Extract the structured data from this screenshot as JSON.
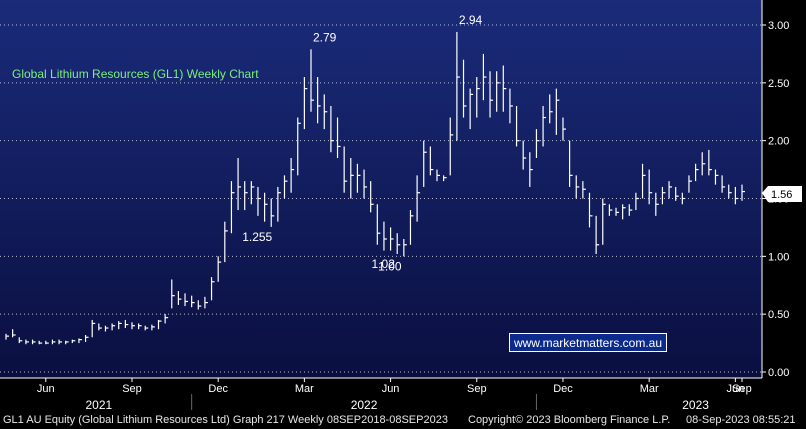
{
  "chart_data": {
    "type": "ohlc",
    "title": "Global Lithium Resources (GL1) Weekly Chart",
    "colors": {
      "background": "#000000",
      "plot_top": "#1a2b7a",
      "plot_bottom": "#0a0f40",
      "bars": "#ffffff",
      "grid": "#ffffff",
      "title": "#7cf07c",
      "last_price_box": "#ffffff"
    },
    "ylim": [
      0,
      3.1
    ],
    "y_ticks": [
      "0.00",
      "0.50",
      "1.00",
      "1.50",
      "2.00",
      "2.50",
      "3.00"
    ],
    "x_ticks": [
      "Jun",
      "Sep",
      "Dec",
      "Mar",
      "Jun",
      "Sep",
      "Dec",
      "Mar",
      "Jun",
      "Sep"
    ],
    "years": [
      "2021",
      "2022",
      "2023"
    ],
    "grid": "dotted horizontal",
    "last_price": "1.56",
    "annotations": [
      "2.79",
      "2.94",
      "1.255",
      "1.00",
      "1.02"
    ],
    "weekly_bars": [
      {
        "h": 0.33,
        "l": 0.28,
        "c": 0.31
      },
      {
        "h": 0.37,
        "l": 0.3,
        "c": 0.32
      },
      {
        "h": 0.3,
        "l": 0.25,
        "c": 0.27
      },
      {
        "h": 0.28,
        "l": 0.24,
        "c": 0.26
      },
      {
        "h": 0.28,
        "l": 0.24,
        "c": 0.26
      },
      {
        "h": 0.27,
        "l": 0.24,
        "c": 0.25
      },
      {
        "h": 0.27,
        "l": 0.24,
        "c": 0.25
      },
      {
        "h": 0.28,
        "l": 0.24,
        "c": 0.26
      },
      {
        "h": 0.28,
        "l": 0.24,
        "c": 0.26
      },
      {
        "h": 0.27,
        "l": 0.24,
        "c": 0.26
      },
      {
        "h": 0.28,
        "l": 0.25,
        "c": 0.27
      },
      {
        "h": 0.29,
        "l": 0.25,
        "c": 0.28
      },
      {
        "h": 0.32,
        "l": 0.26,
        "c": 0.3
      },
      {
        "h": 0.45,
        "l": 0.3,
        "c": 0.42
      },
      {
        "h": 0.42,
        "l": 0.36,
        "c": 0.38
      },
      {
        "h": 0.4,
        "l": 0.35,
        "c": 0.38
      },
      {
        "h": 0.42,
        "l": 0.36,
        "c": 0.4
      },
      {
        "h": 0.44,
        "l": 0.37,
        "c": 0.42
      },
      {
        "h": 0.45,
        "l": 0.38,
        "c": 0.41
      },
      {
        "h": 0.43,
        "l": 0.37,
        "c": 0.4
      },
      {
        "h": 0.42,
        "l": 0.37,
        "c": 0.4
      },
      {
        "h": 0.4,
        "l": 0.36,
        "c": 0.38
      },
      {
        "h": 0.41,
        "l": 0.36,
        "c": 0.39
      },
      {
        "h": 0.45,
        "l": 0.37,
        "c": 0.44
      },
      {
        "h": 0.5,
        "l": 0.42,
        "c": 0.47
      },
      {
        "h": 0.8,
        "l": 0.55,
        "c": 0.66
      },
      {
        "h": 0.7,
        "l": 0.58,
        "c": 0.63
      },
      {
        "h": 0.68,
        "l": 0.57,
        "c": 0.61
      },
      {
        "h": 0.66,
        "l": 0.56,
        "c": 0.6
      },
      {
        "h": 0.62,
        "l": 0.54,
        "c": 0.57
      },
      {
        "h": 0.65,
        "l": 0.55,
        "c": 0.6
      },
      {
        "h": 0.82,
        "l": 0.62,
        "c": 0.78
      },
      {
        "h": 1.0,
        "l": 0.78,
        "c": 0.95
      },
      {
        "h": 1.3,
        "l": 0.95,
        "c": 1.22
      },
      {
        "h": 1.65,
        "l": 1.2,
        "c": 1.55
      },
      {
        "h": 1.85,
        "l": 1.4,
        "c": 1.6
      },
      {
        "h": 1.65,
        "l": 1.4,
        "c": 1.55
      },
      {
        "h": 1.65,
        "l": 1.45,
        "c": 1.6
      },
      {
        "h": 1.6,
        "l": 1.35,
        "c": 1.5
      },
      {
        "h": 1.55,
        "l": 1.3,
        "c": 1.45
      },
      {
        "h": 1.5,
        "l": 1.255,
        "c": 1.35
      },
      {
        "h": 1.6,
        "l": 1.3,
        "c": 1.55
      },
      {
        "h": 1.7,
        "l": 1.5,
        "c": 1.65
      },
      {
        "h": 1.85,
        "l": 1.55,
        "c": 1.75
      },
      {
        "h": 2.2,
        "l": 1.7,
        "c": 2.15
      },
      {
        "h": 2.55,
        "l": 2.1,
        "c": 2.45
      },
      {
        "h": 2.79,
        "l": 2.25,
        "c": 2.35
      },
      {
        "h": 2.55,
        "l": 2.15,
        "c": 2.3
      },
      {
        "h": 2.4,
        "l": 2.1,
        "c": 2.25
      },
      {
        "h": 2.3,
        "l": 1.9,
        "c": 2.0
      },
      {
        "h": 2.2,
        "l": 1.85,
        "c": 1.95
      },
      {
        "h": 1.95,
        "l": 1.55,
        "c": 1.65
      },
      {
        "h": 1.85,
        "l": 1.5,
        "c": 1.7
      },
      {
        "h": 1.8,
        "l": 1.55,
        "c": 1.7
      },
      {
        "h": 1.75,
        "l": 1.5,
        "c": 1.6
      },
      {
        "h": 1.65,
        "l": 1.38,
        "c": 1.45
      },
      {
        "h": 1.45,
        "l": 1.1,
        "c": 1.2
      },
      {
        "h": 1.3,
        "l": 1.05,
        "c": 1.15
      },
      {
        "h": 1.25,
        "l": 1.05,
        "c": 1.15
      },
      {
        "h": 1.2,
        "l": 1.02,
        "c": 1.1
      },
      {
        "h": 1.15,
        "l": 1.0,
        "c": 1.1
      },
      {
        "h": 1.4,
        "l": 1.1,
        "c": 1.35
      },
      {
        "h": 1.7,
        "l": 1.3,
        "c": 1.55
      },
      {
        "h": 2.0,
        "l": 1.6,
        "c": 1.9
      },
      {
        "h": 1.95,
        "l": 1.7,
        "c": 1.75
      },
      {
        "h": 1.75,
        "l": 1.65,
        "c": 1.7
      },
      {
        "h": 1.7,
        "l": 1.65,
        "c": 1.68
      },
      {
        "h": 2.2,
        "l": 1.7,
        "c": 2.05
      },
      {
        "h": 2.94,
        "l": 2.0,
        "c": 2.55
      },
      {
        "h": 2.7,
        "l": 2.2,
        "c": 2.3
      },
      {
        "h": 2.45,
        "l": 2.1,
        "c": 2.4
      },
      {
        "h": 2.55,
        "l": 2.2,
        "c": 2.45
      },
      {
        "h": 2.75,
        "l": 2.35,
        "c": 2.55
      },
      {
        "h": 2.6,
        "l": 2.2,
        "c": 2.35
      },
      {
        "h": 2.6,
        "l": 2.25,
        "c": 2.5
      },
      {
        "h": 2.65,
        "l": 2.25,
        "c": 2.45
      },
      {
        "h": 2.45,
        "l": 2.15,
        "c": 2.3
      },
      {
        "h": 2.3,
        "l": 1.95,
        "c": 2.0
      },
      {
        "h": 2.0,
        "l": 1.75,
        "c": 1.85
      },
      {
        "h": 1.9,
        "l": 1.6,
        "c": 1.75
      },
      {
        "h": 2.1,
        "l": 1.85,
        "c": 2.0
      },
      {
        "h": 2.3,
        "l": 1.95,
        "c": 2.2
      },
      {
        "h": 2.4,
        "l": 2.15,
        "c": 2.25
      },
      {
        "h": 2.45,
        "l": 2.05,
        "c": 2.35
      },
      {
        "h": 2.2,
        "l": 2.0,
        "c": 2.1
      },
      {
        "h": 2.0,
        "l": 1.6,
        "c": 1.7
      },
      {
        "h": 1.7,
        "l": 1.5,
        "c": 1.6
      },
      {
        "h": 1.65,
        "l": 1.5,
        "c": 1.58
      },
      {
        "h": 1.55,
        "l": 1.25,
        "c": 1.35
      },
      {
        "h": 1.35,
        "l": 1.02,
        "c": 1.1
      },
      {
        "h": 1.5,
        "l": 1.1,
        "c": 1.45
      },
      {
        "h": 1.45,
        "l": 1.35,
        "c": 1.4
      },
      {
        "h": 1.42,
        "l": 1.35,
        "c": 1.38
      },
      {
        "h": 1.45,
        "l": 1.32,
        "c": 1.42
      },
      {
        "h": 1.45,
        "l": 1.35,
        "c": 1.4
      },
      {
        "h": 1.55,
        "l": 1.4,
        "c": 1.5
      },
      {
        "h": 1.8,
        "l": 1.5,
        "c": 1.7
      },
      {
        "h": 1.75,
        "l": 1.45,
        "c": 1.55
      },
      {
        "h": 1.55,
        "l": 1.35,
        "c": 1.45
      },
      {
        "h": 1.6,
        "l": 1.45,
        "c": 1.55
      },
      {
        "h": 1.65,
        "l": 1.5,
        "c": 1.6
      },
      {
        "h": 1.6,
        "l": 1.48,
        "c": 1.52
      },
      {
        "h": 1.55,
        "l": 1.45,
        "c": 1.5
      },
      {
        "h": 1.7,
        "l": 1.55,
        "c": 1.65
      },
      {
        "h": 1.8,
        "l": 1.65,
        "c": 1.75
      },
      {
        "h": 1.9,
        "l": 1.7,
        "c": 1.8
      },
      {
        "h": 1.92,
        "l": 1.7,
        "c": 1.75
      },
      {
        "h": 1.75,
        "l": 1.62,
        "c": 1.7
      },
      {
        "h": 1.7,
        "l": 1.55,
        "c": 1.6
      },
      {
        "h": 1.62,
        "l": 1.5,
        "c": 1.55
      },
      {
        "h": 1.6,
        "l": 1.45,
        "c": 1.5
      },
      {
        "h": 1.62,
        "l": 1.48,
        "c": 1.56
      }
    ]
  },
  "watermark": "www.marketmatters.com.au",
  "footer": {
    "left": "GL1 AU Equity (Global Lithium Resources Ltd) Graph 217  Weekly 08SEP2018-08SEP2023",
    "copyright": "Copyright© 2023 Bloomberg Finance L.P.",
    "timestamp": "08-Sep-2023 08:55:21"
  }
}
